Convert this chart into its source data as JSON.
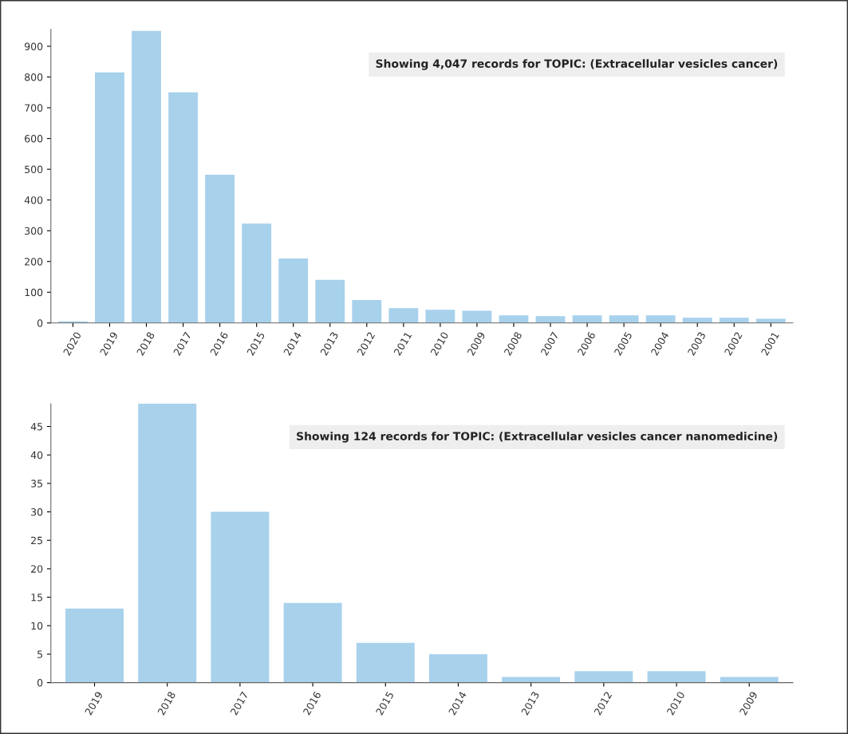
{
  "chart_data": [
    {
      "type": "bar",
      "categories": [
        "2020",
        "2019",
        "2018",
        "2017",
        "2016",
        "2015",
        "2014",
        "2013",
        "2012",
        "2011",
        "2010",
        "2009",
        "2008",
        "2007",
        "2006",
        "2005",
        "2004",
        "2003",
        "2002",
        "2001"
      ],
      "series": [
        {
          "color": "#a8d1ec",
          "values": [
            5,
            815,
            950,
            750,
            482,
            323,
            210,
            140,
            75,
            48,
            43,
            40,
            25,
            22,
            25,
            25,
            25,
            17,
            17,
            14
          ]
        }
      ],
      "ylim": [
        0,
        955
      ],
      "yticks": [
        0,
        100,
        200,
        300,
        400,
        500,
        600,
        700,
        800,
        900
      ],
      "grid": false,
      "legend": false,
      "annotations": [
        "Showing 4,047 records for TOPIC: (Extracellular vesicles cancer)"
      ]
    },
    {
      "type": "bar",
      "categories": [
        "2019",
        "2018",
        "2017",
        "2016",
        "2015",
        "2014",
        "2013",
        "2012",
        "2010",
        "2009"
      ],
      "series": [
        {
          "color": "#a8d1ec",
          "values": [
            13,
            49,
            30,
            14,
            7,
            5,
            1,
            2,
            2,
            1
          ]
        }
      ],
      "ylim": [
        0,
        49
      ],
      "yticks": [
        0,
        5,
        10,
        15,
        20,
        25,
        30,
        35,
        40,
        45
      ],
      "grid": false,
      "legend": false,
      "annotations": [
        "Showing 124 records for TOPIC: (Extracellular vesicles cancer nanomedicine)"
      ]
    }
  ]
}
